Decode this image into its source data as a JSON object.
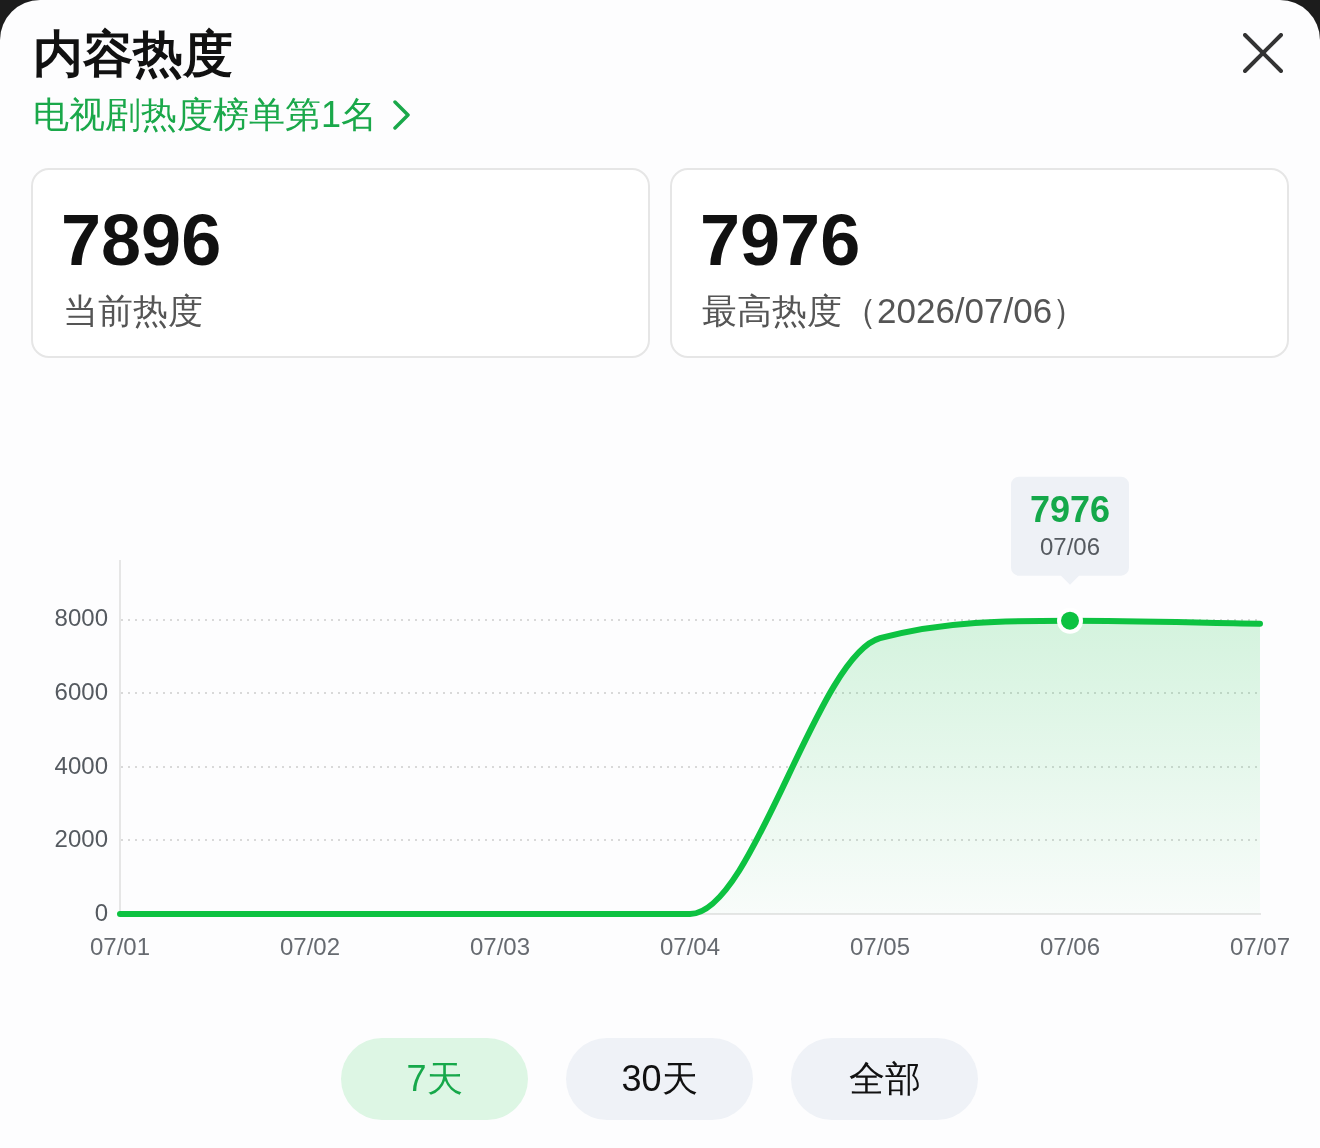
{
  "chart_data": {
    "type": "area",
    "title": "内容热度",
    "subtitle": "电视剧热度榜单第1名",
    "categories": [
      "07/01",
      "07/02",
      "07/03",
      "07/04",
      "07/05",
      "07/06",
      "07/07"
    ],
    "values": [
      0,
      0,
      0,
      0,
      7500,
      7976,
      7896
    ],
    "color": "#0dc241",
    "ylim": [
      0,
      9600
    ],
    "yticks": [
      0,
      2000,
      4000,
      6000,
      8000
    ],
    "grid": "y",
    "annotations": [
      "7896",
      "当前热度",
      "7976",
      "最高热度（2026/07/06）",
      "7天",
      "30天",
      "全部",
      {
        "text": "7976",
        "x": "07/06",
        "y": 7976
      }
    ]
  }
}
